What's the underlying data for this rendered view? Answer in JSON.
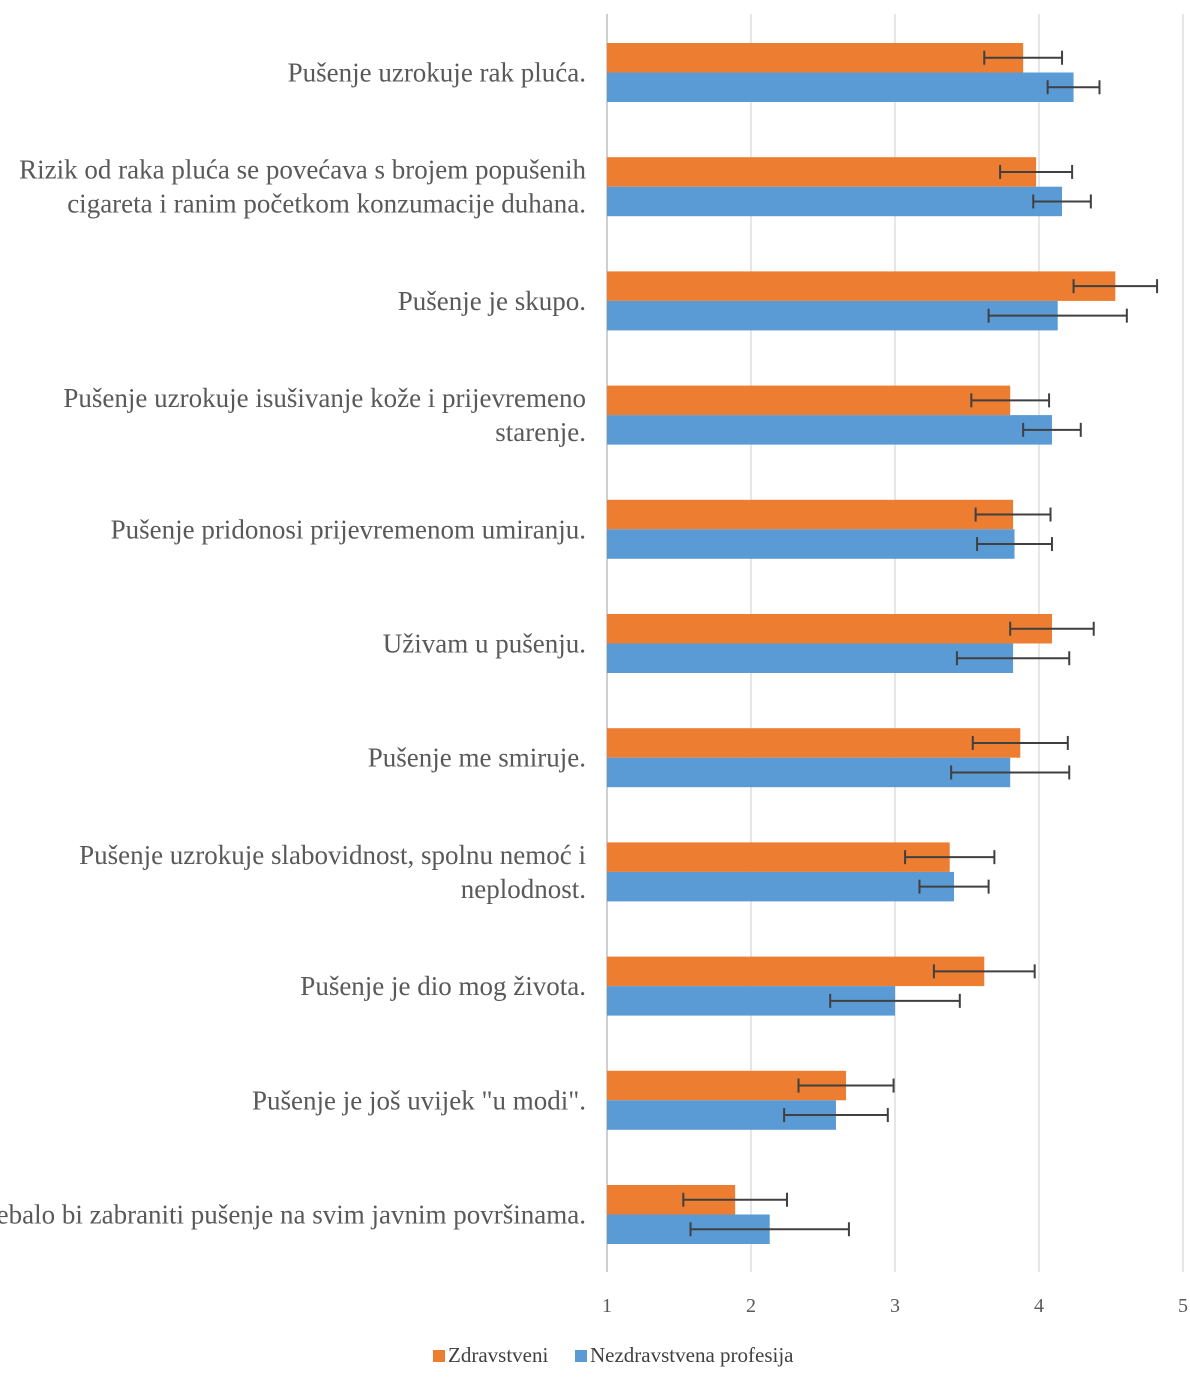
{
  "chart_data": {
    "type": "bar",
    "orientation": "horizontal",
    "categories": [
      [
        "Pušenje uzrokuje rak pluća."
      ],
      [
        "Rizik od raka pluća se povećava s brojem popušenih",
        "cigareta i ranim početkom konzumacije duhana."
      ],
      [
        "Pušenje je skupo."
      ],
      [
        "Pušenje uzrokuje isušivanje kože i prijevremeno",
        "starenje."
      ],
      [
        "Pušenje pridonosi prijevremenom umiranju."
      ],
      [
        "Uživam u pušenju."
      ],
      [
        "Pušenje me smiruje."
      ],
      [
        "Pušenje uzrokuje slabovidnost, spolnu nemoć i",
        "neplodnost."
      ],
      [
        "Pušenje je dio mog života."
      ],
      [
        "Pušenje je još uvijek \"u modi\"."
      ],
      [
        "Trebalo bi zabraniti pušenje na svim javnim površinama."
      ]
    ],
    "series": [
      {
        "name": "Zdravstveni",
        "color": "#ED7D31",
        "values": [
          3.89,
          3.98,
          4.53,
          3.8,
          3.82,
          4.09,
          3.87,
          3.38,
          3.62,
          2.66,
          1.89
        ],
        "errors": [
          0.27,
          0.25,
          0.29,
          0.27,
          0.26,
          0.29,
          0.33,
          0.31,
          0.35,
          0.33,
          0.36
        ]
      },
      {
        "name": "Nezdravstvena profesija",
        "color": "#5B9BD5",
        "values": [
          4.24,
          4.16,
          4.13,
          4.09,
          3.83,
          3.82,
          3.8,
          3.41,
          3.0,
          2.59,
          2.13
        ],
        "errors": [
          0.18,
          0.2,
          0.48,
          0.2,
          0.26,
          0.39,
          0.41,
          0.24,
          0.45,
          0.36,
          0.55
        ]
      }
    ],
    "x_ticks": [
      "1",
      "2",
      "3",
      "4",
      "5"
    ],
    "xlim": [
      1,
      5
    ],
    "grid": true,
    "legend_position": "bottom"
  }
}
